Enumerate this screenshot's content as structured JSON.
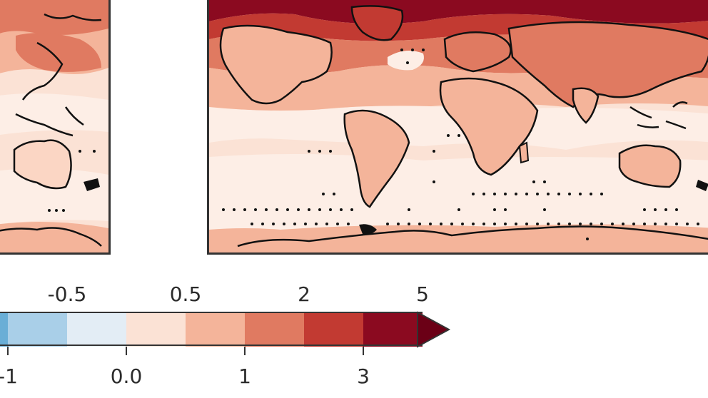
{
  "colorbar": {
    "colors": [
      "#6aaed6",
      "#a9cfe8",
      "#e3edf5",
      "#fbe2d5",
      "#f4b49a",
      "#e07a61",
      "#c23a32",
      "#8b0a20",
      "#6b0016"
    ],
    "ticks_top": [
      "-0.5",
      "0.5",
      "2",
      "5"
    ],
    "ticks_bottom": [
      "-1",
      "0.0",
      "1",
      "3"
    ],
    "extend": "max"
  },
  "map_colors": {
    "background": "#fbe2d5",
    "light": "#fdeee6",
    "mid": "#f4b49a",
    "strong": "#e07a61",
    "deep": "#c23a32",
    "darkest": "#8b0a20",
    "coast": "#111111",
    "stipple": "#111111"
  },
  "map_left": {
    "hatching": "stippling-dots"
  },
  "map_right": {
    "hatching": "stippling-dots"
  }
}
